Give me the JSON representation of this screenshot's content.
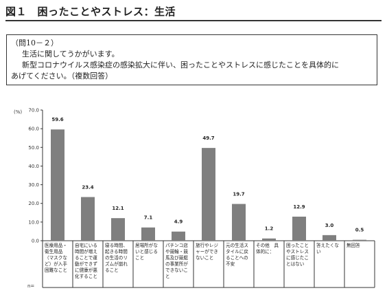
{
  "header": {
    "figure_title": "図１　困ったことやストレス：生活"
  },
  "question": {
    "number": "（問10－２）",
    "line1": "生活に関してうかがいます。",
    "line2": "新型コロナウイルス感染症の感染拡大に伴い、困ったことやストレスに感じたことを具体的に",
    "line3": "あげてください。（複数回答）"
  },
  "chart_data": {
    "type": "bar",
    "unit_label": "(%)",
    "n_label": "n=",
    "ylim": [
      0,
      70
    ],
    "yticks": [
      "70.0",
      "60.0",
      "50.0",
      "40.0",
      "30.0",
      "20.0",
      "10.0",
      "0.0"
    ],
    "grid": false,
    "bar_color": "#7f7f7f",
    "categories": [
      "医療用品・衛生用品（マスクなど）が入手困難なこと",
      "自宅にいる時間が増えることで運動ができずに健康が悪化すること",
      "寝る時間、起きる時間の生活のリズムが崩れること",
      "居場所がないと感じること",
      "パチンコ店や競輪・競馬及び競艇の事業所ができないこと",
      "旅行やレジャーができないこと",
      "元の生活スタイルに戻ることへの不安",
      "その他　具体的に：",
      "困ったことやストレスに感じたことはない",
      "答えたくない",
      "無回答"
    ],
    "values": [
      59.6,
      23.4,
      12.1,
      7.1,
      4.9,
      49.7,
      19.7,
      1.2,
      12.9,
      3.0,
      0.5
    ],
    "value_labels": [
      "59.6",
      "23.4",
      "12.1",
      "7.1",
      "4.9",
      "49.7",
      "19.7",
      "1.2",
      "12.9",
      "3.0",
      "0.5"
    ]
  }
}
